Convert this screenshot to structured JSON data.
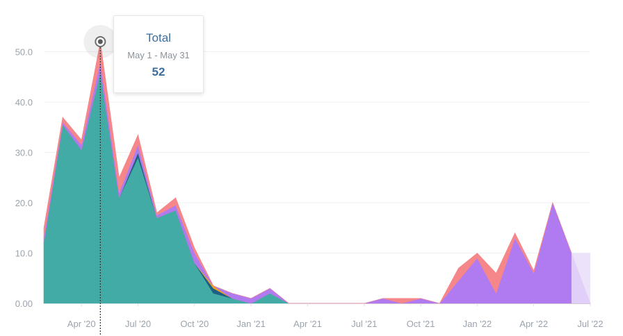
{
  "chart_data": {
    "type": "area",
    "stacked": true,
    "ylim": [
      0,
      52
    ],
    "yticks": [
      "0.00",
      "10.0",
      "20.0",
      "30.0",
      "40.0",
      "50.0"
    ],
    "ytick_values": [
      0,
      10,
      20,
      30,
      40,
      50
    ],
    "xticks": [
      {
        "label": "Apr '20",
        "index": 2
      },
      {
        "label": "Jul '20",
        "index": 5
      },
      {
        "label": "Oct '20",
        "index": 8
      },
      {
        "label": "Jan '21",
        "index": 11
      },
      {
        "label": "Apr '21",
        "index": 14
      },
      {
        "label": "Jul '21",
        "index": 17
      },
      {
        "label": "Oct '21",
        "index": 20
      },
      {
        "label": "Jan '22",
        "index": 23
      },
      {
        "label": "Apr '22",
        "index": 26
      },
      {
        "label": "Jul '22",
        "index": 29
      }
    ],
    "x": [
      "2020-02",
      "2020-03",
      "2020-04",
      "2020-05",
      "2020-06",
      "2020-07",
      "2020-08",
      "2020-09",
      "2020-10",
      "2020-11",
      "2020-12",
      "2021-01",
      "2021-02",
      "2021-03",
      "2021-04",
      "2021-05",
      "2021-06",
      "2021-07",
      "2021-08",
      "2021-09",
      "2021-10",
      "2021-11",
      "2021-12",
      "2022-01",
      "2022-02",
      "2022-03",
      "2022-04",
      "2022-05",
      "2022-06",
      "2022-07"
    ],
    "series": [
      {
        "color": "#42aba6",
        "values": [
          12,
          35.5,
          30.5,
          46,
          21,
          29,
          17,
          18.5,
          8,
          2,
          1,
          0,
          2,
          0,
          0,
          0,
          0,
          0,
          0,
          0,
          0,
          0,
          0,
          0,
          0,
          0,
          0,
          0,
          0,
          0
        ]
      },
      {
        "color": "#1f5f85",
        "values": [
          0,
          0,
          0,
          0,
          0,
          1,
          0,
          0,
          0,
          1,
          0,
          0,
          0,
          0,
          0,
          0,
          0,
          0,
          0,
          0,
          0,
          0,
          0,
          0,
          0,
          0,
          0,
          0,
          0,
          0
        ]
      },
      {
        "color": "#f0a020",
        "values": [
          0,
          0,
          0,
          0,
          0,
          0,
          0,
          0,
          0,
          0.5,
          0,
          0,
          0,
          0,
          0,
          0,
          0,
          0,
          0,
          0,
          0,
          0,
          0,
          0,
          0,
          0,
          0,
          0,
          0,
          0
        ]
      },
      {
        "color": "#b07af0",
        "values": [
          1,
          0.5,
          1,
          2,
          1,
          1.5,
          0.5,
          1,
          2,
          0,
          1,
          1,
          1,
          0,
          0,
          0,
          0,
          0,
          1,
          0,
          1,
          0,
          4.5,
          9,
          2,
          13,
          6,
          20,
          10,
          0
        ]
      },
      {
        "color": "#f5868a",
        "values": [
          2,
          1,
          1,
          4,
          3,
          2,
          0.5,
          1.5,
          1,
          0,
          0,
          0,
          0,
          0,
          0,
          0,
          0,
          0,
          0,
          1,
          0,
          0,
          2.5,
          1,
          4,
          1,
          0.5,
          0,
          0,
          0
        ]
      }
    ]
  },
  "tooltip": {
    "title": "Total",
    "range": "May 1 - May 31",
    "value": "52",
    "index": 3
  }
}
